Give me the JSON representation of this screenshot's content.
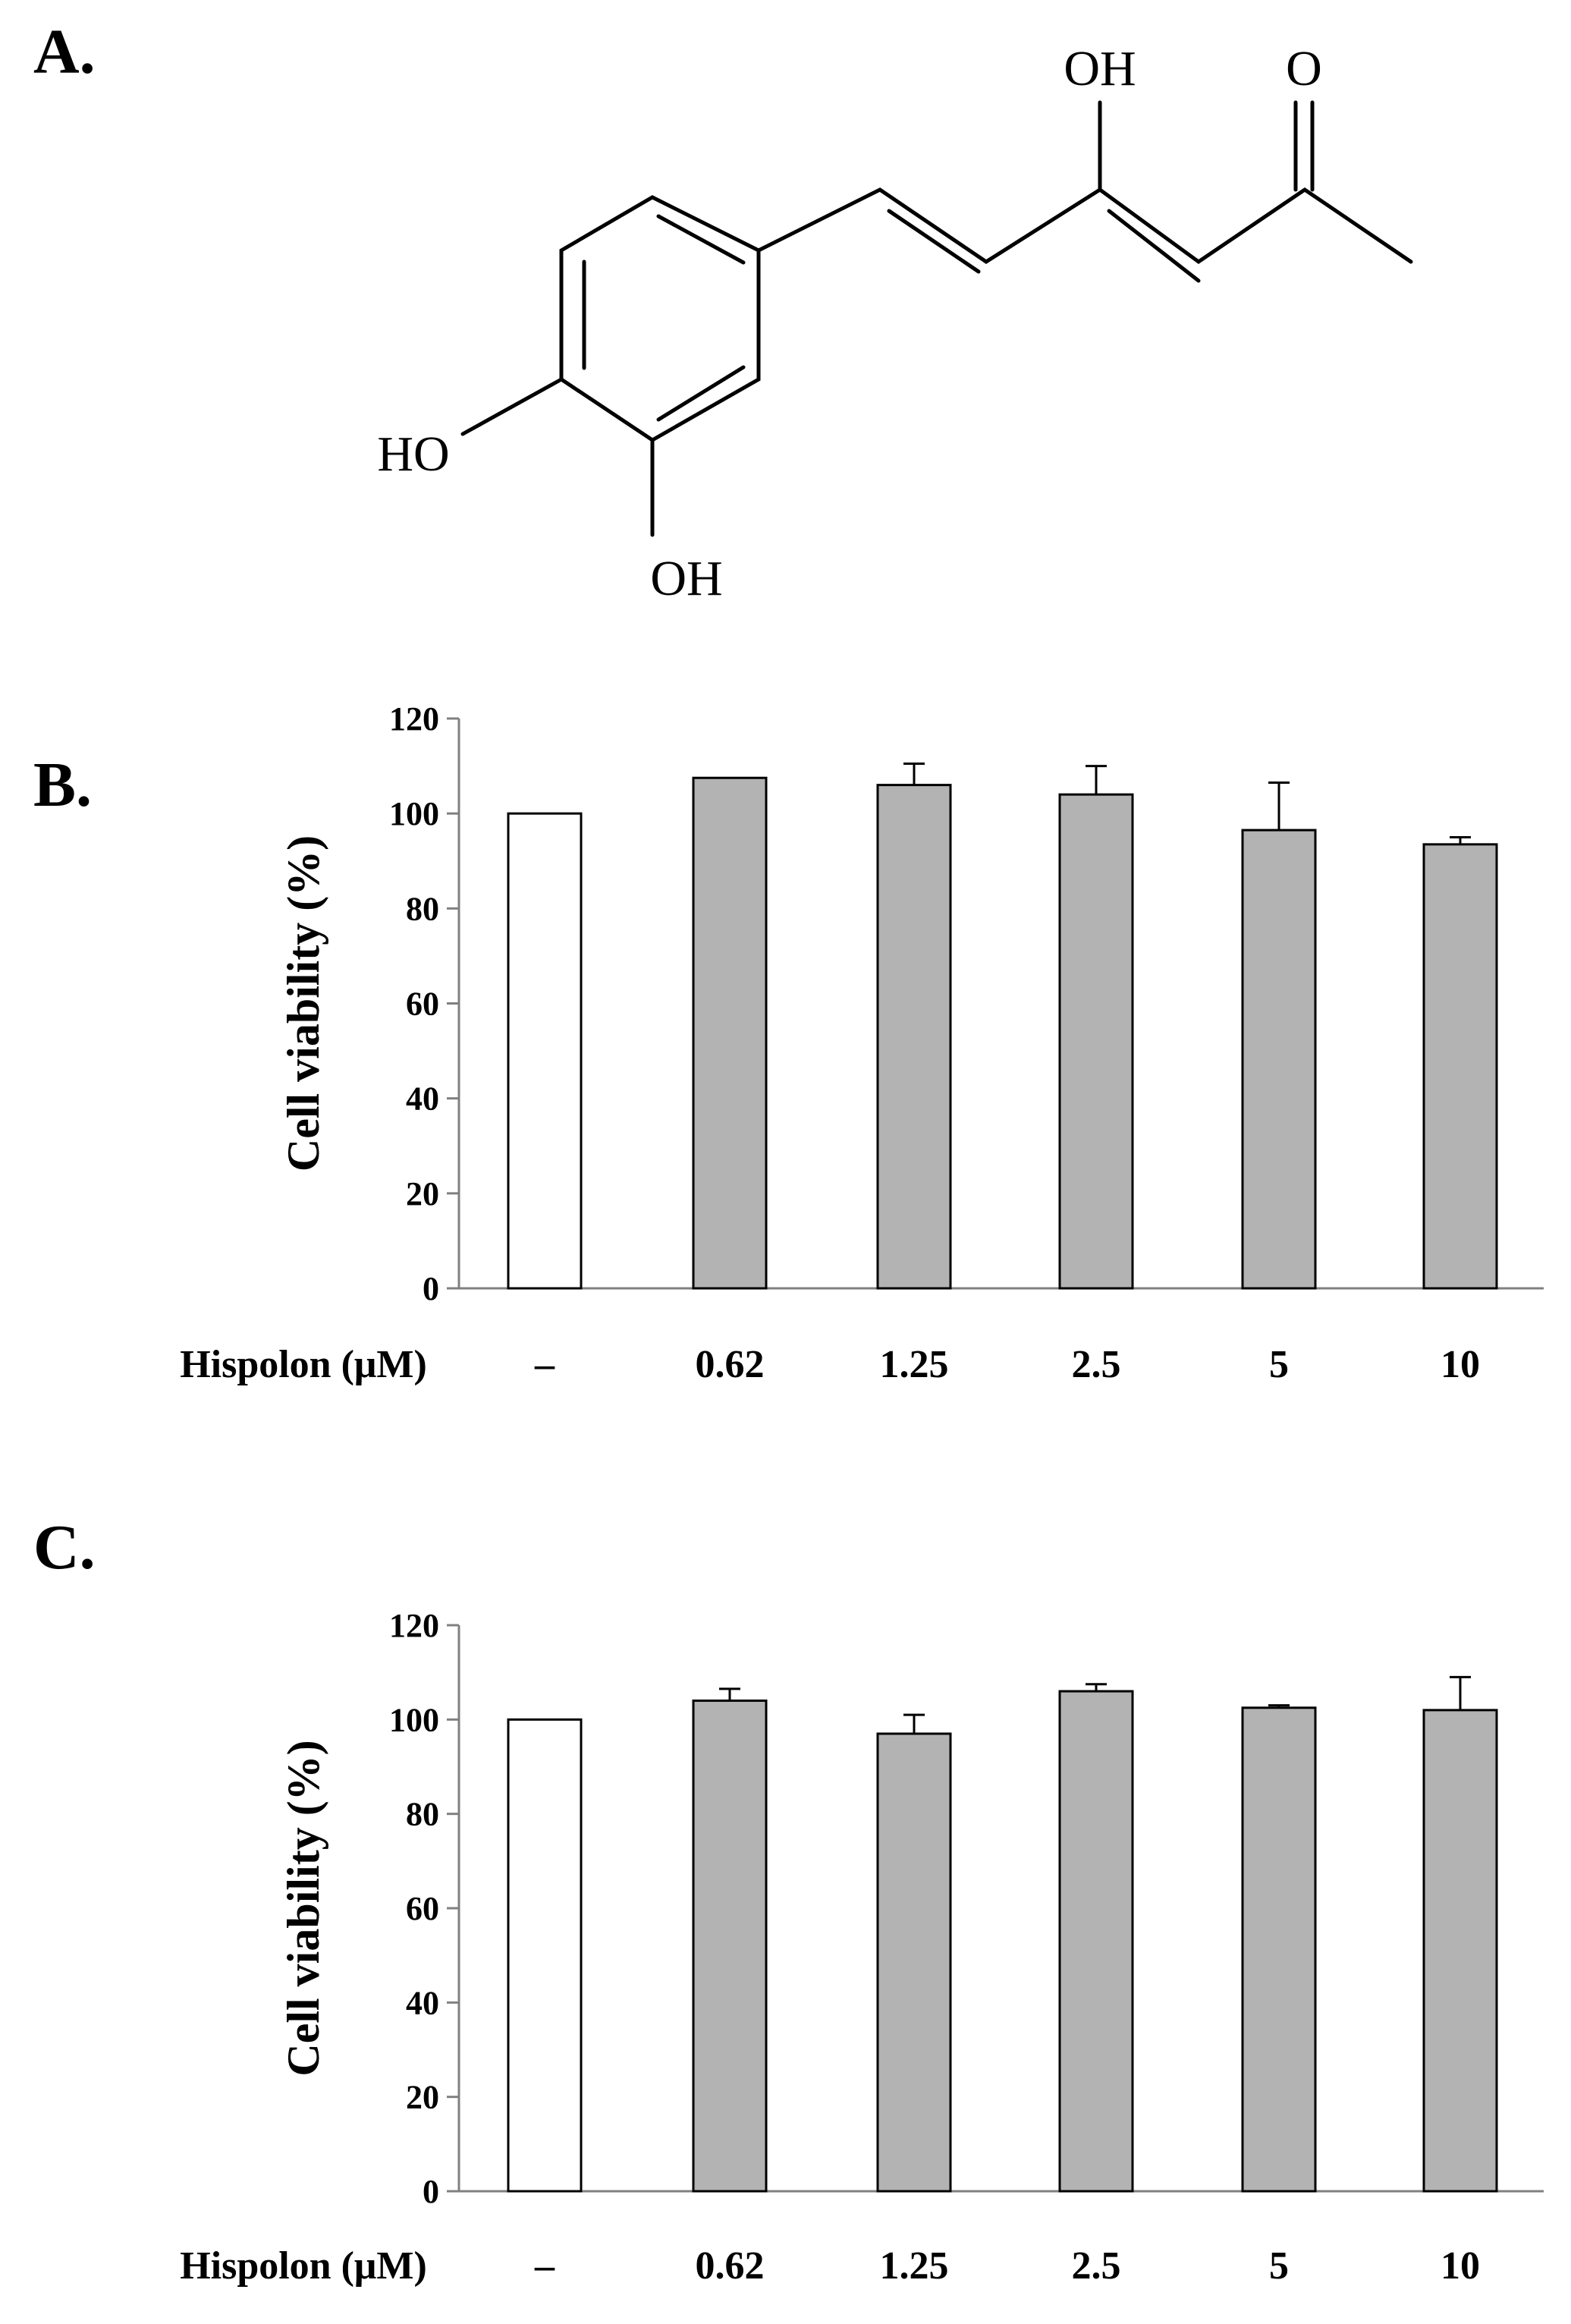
{
  "panels": {
    "a": {
      "label": "A."
    },
    "b": {
      "label": "B."
    },
    "c": {
      "label": "C."
    }
  },
  "structure": {
    "atoms": {
      "oh_top": "OH",
      "o_top": "O",
      "ho_left": "HO",
      "oh_bottom": "OH"
    }
  },
  "colors": {
    "control_fill": "#ffffff",
    "treated_fill": "#b3b3b3",
    "outline": "#000000"
  },
  "chart_data": [
    {
      "panel": "B.",
      "type": "bar",
      "categories": [
        "–",
        "0.62",
        "1.25",
        "2.5",
        "5",
        "10"
      ],
      "values": [
        100,
        107.5,
        106,
        104,
        96.5,
        93.5
      ],
      "errors": [
        0,
        0,
        4.5,
        6,
        10,
        1.5
      ],
      "xlabel": "Hispolon (μM)",
      "ylabel": "Cell viability (%)",
      "ylim": [
        0,
        120
      ],
      "yticks": [
        0,
        20,
        40,
        60,
        80,
        100,
        120
      ],
      "grid": false,
      "legend": "none"
    },
    {
      "panel": "C.",
      "type": "bar",
      "categories": [
        "–",
        "0.62",
        "1.25",
        "2.5",
        "5",
        "10"
      ],
      "values": [
        100,
        104,
        97,
        106,
        102.5,
        102
      ],
      "errors": [
        0,
        2.5,
        4,
        1.5,
        0.5,
        7
      ],
      "xlabel": "Hispolon (μM)",
      "ylabel": "Cell viability (%)",
      "ylim": [
        0,
        120
      ],
      "yticks": [
        0,
        20,
        40,
        60,
        80,
        100,
        120
      ],
      "grid": false,
      "legend": "none"
    }
  ]
}
